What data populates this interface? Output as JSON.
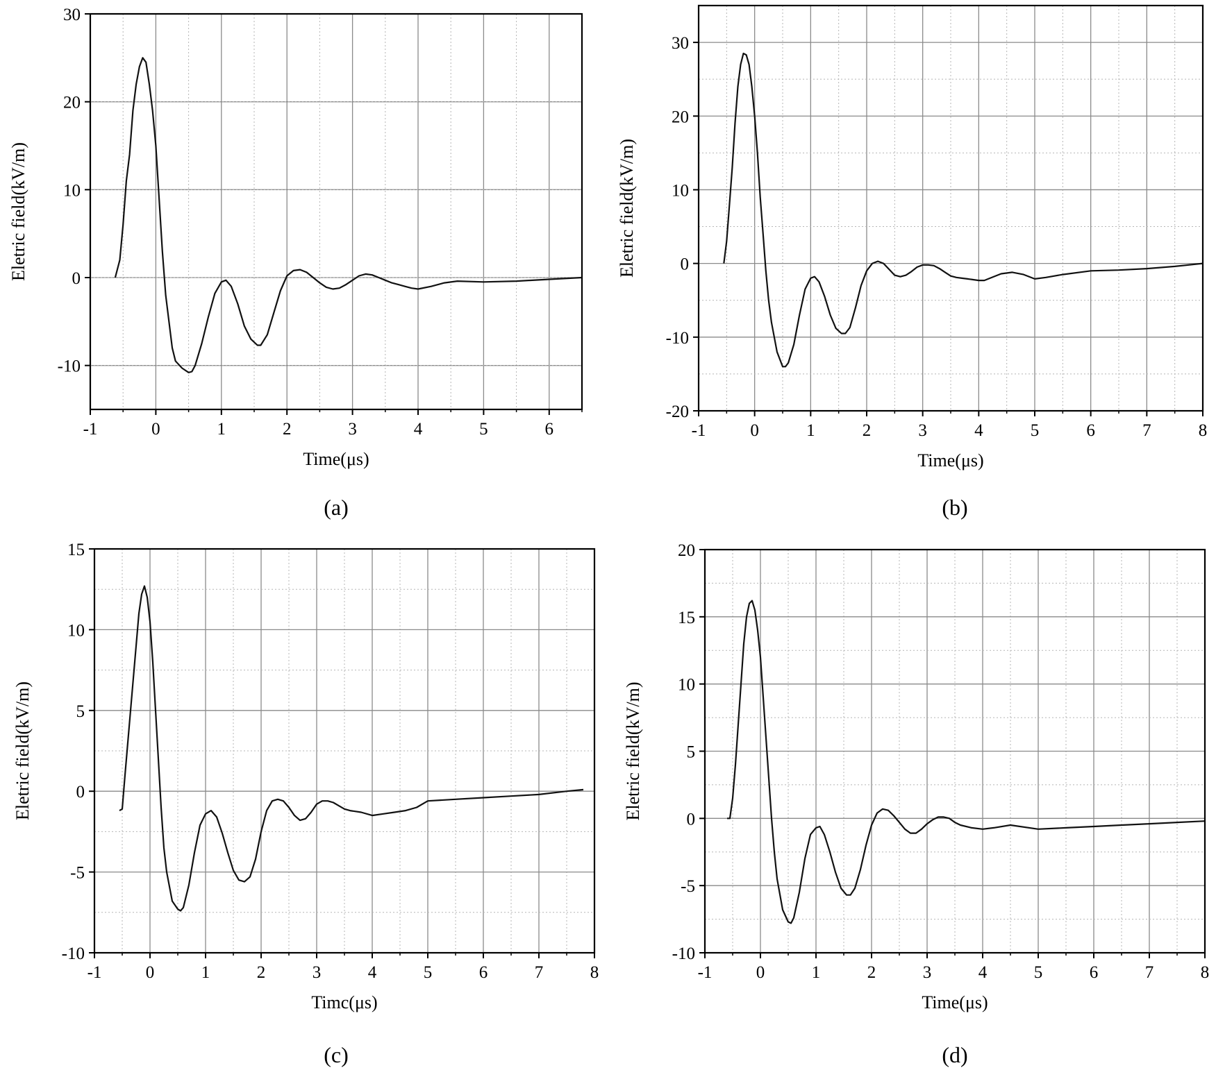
{
  "chart_data": [
    {
      "type": "line",
      "caption": "(a)",
      "xlabel": "Time(μs)",
      "ylabel": "Eletric field(kV/m)",
      "xlim": [
        -1,
        6.5
      ],
      "ylim": [
        -15,
        30
      ],
      "xticks": [
        -1,
        0,
        1,
        2,
        3,
        4,
        5,
        6
      ],
      "yticks": [
        -10,
        0,
        10,
        20,
        30
      ],
      "grid": true,
      "series": [
        {
          "x": [
            -0.62,
            -0.55,
            -0.5,
            -0.45,
            -0.4,
            -0.35,
            -0.3,
            -0.25,
            -0.2,
            -0.15,
            -0.1,
            -0.05,
            0,
            0.05,
            0.1,
            0.15,
            0.2,
            0.25,
            0.3,
            0.4,
            0.5,
            0.55,
            0.6,
            0.7,
            0.8,
            0.9,
            1.0,
            1.07,
            1.15,
            1.25,
            1.35,
            1.45,
            1.55,
            1.6,
            1.7,
            1.8,
            1.9,
            2.0,
            2.1,
            2.2,
            2.3,
            2.4,
            2.5,
            2.6,
            2.7,
            2.8,
            2.9,
            3.0,
            3.1,
            3.2,
            3.3,
            3.4,
            3.5,
            3.6,
            3.7,
            3.8,
            3.9,
            4.0,
            4.2,
            4.4,
            4.6,
            5.0,
            5.5,
            6.0,
            6.5
          ],
          "y": [
            0,
            2,
            6,
            11,
            14,
            19,
            22,
            24,
            25,
            24.5,
            22,
            19,
            15,
            9,
            3,
            -2,
            -5,
            -8,
            -9.5,
            -10.3,
            -10.8,
            -10.7,
            -10,
            -7.5,
            -4.5,
            -1.8,
            -0.5,
            -0.3,
            -1,
            -3,
            -5.5,
            -7,
            -7.7,
            -7.7,
            -6.5,
            -4,
            -1.5,
            0.2,
            0.8,
            0.9,
            0.6,
            0,
            -0.6,
            -1.1,
            -1.3,
            -1.2,
            -0.8,
            -0.3,
            0.2,
            0.4,
            0.3,
            0,
            -0.3,
            -0.6,
            -0.8,
            -1.0,
            -1.2,
            -1.3,
            -1.0,
            -0.6,
            -0.4,
            -0.5,
            -0.4,
            -0.2,
            0
          ]
        }
      ]
    },
    {
      "type": "line",
      "caption": "(b)",
      "xlabel": "Time(μs)",
      "ylabel": "Eletric field(kV/m)",
      "xlim": [
        -1,
        8
      ],
      "ylim": [
        -20,
        35
      ],
      "xticks": [
        -1,
        0,
        1,
        2,
        3,
        4,
        5,
        6,
        7,
        8
      ],
      "yticks": [
        -20,
        -10,
        0,
        10,
        20,
        30
      ],
      "grid": true,
      "series": [
        {
          "x": [
            -0.55,
            -0.5,
            -0.45,
            -0.4,
            -0.35,
            -0.3,
            -0.25,
            -0.2,
            -0.15,
            -0.1,
            -0.05,
            0,
            0.05,
            0.1,
            0.15,
            0.2,
            0.25,
            0.3,
            0.4,
            0.5,
            0.55,
            0.6,
            0.7,
            0.8,
            0.9,
            1.0,
            1.07,
            1.15,
            1.25,
            1.35,
            1.45,
            1.55,
            1.62,
            1.7,
            1.8,
            1.9,
            2.0,
            2.1,
            2.2,
            2.3,
            2.4,
            2.5,
            2.6,
            2.7,
            2.8,
            2.9,
            3.0,
            3.1,
            3.2,
            3.3,
            3.4,
            3.5,
            3.6,
            3.7,
            3.8,
            3.9,
            4.0,
            4.1,
            4.2,
            4.4,
            4.6,
            4.8,
            5.0,
            5.2,
            5.5,
            6.0,
            6.5,
            7.0,
            7.5,
            8.0
          ],
          "y": [
            0,
            3,
            8,
            13,
            19,
            24,
            27,
            28.5,
            28.3,
            27,
            24,
            20,
            15,
            9,
            4,
            -1,
            -5,
            -8,
            -12,
            -14,
            -14,
            -13.5,
            -11,
            -7,
            -3.5,
            -2,
            -1.8,
            -2.5,
            -4.5,
            -7,
            -8.8,
            -9.5,
            -9.5,
            -8.7,
            -6,
            -3,
            -1,
            0,
            0.3,
            0,
            -0.8,
            -1.6,
            -1.8,
            -1.6,
            -1.1,
            -0.5,
            -0.2,
            -0.2,
            -0.3,
            -0.7,
            -1.2,
            -1.7,
            -1.9,
            -2,
            -2.1,
            -2.2,
            -2.3,
            -2.3,
            -2.0,
            -1.4,
            -1.2,
            -1.5,
            -2.1,
            -1.9,
            -1.5,
            -1,
            -0.9,
            -0.7,
            -0.4,
            0
          ]
        }
      ]
    },
    {
      "type": "line",
      "caption": "(c)",
      "xlabel": "Timc(μs)",
      "ylabel": "Eletric field(kV/m)",
      "xlim": [
        -1,
        8
      ],
      "ylim": [
        -10,
        15
      ],
      "xticks": [
        -1,
        0,
        1,
        2,
        3,
        4,
        5,
        6,
        7,
        8
      ],
      "yticks": [
        -10,
        -5,
        0,
        5,
        10,
        15
      ],
      "grid": true,
      "series": [
        {
          "x": [
            -0.55,
            -0.5,
            -0.45,
            -0.4,
            -0.35,
            -0.3,
            -0.25,
            -0.2,
            -0.15,
            -0.1,
            -0.05,
            0,
            0.05,
            0.1,
            0.15,
            0.2,
            0.25,
            0.3,
            0.4,
            0.5,
            0.55,
            0.6,
            0.7,
            0.8,
            0.9,
            1.0,
            1.1,
            1.2,
            1.3,
            1.4,
            1.5,
            1.6,
            1.7,
            1.8,
            1.9,
            2.0,
            2.1,
            2.2,
            2.3,
            2.4,
            2.5,
            2.6,
            2.7,
            2.8,
            2.9,
            3.0,
            3.1,
            3.2,
            3.3,
            3.4,
            3.5,
            3.6,
            3.8,
            4.0,
            4.2,
            4.4,
            4.6,
            4.8,
            5.0,
            5.5,
            6.0,
            6.5,
            7.0,
            7.5,
            7.8
          ],
          "y": [
            -1.2,
            -1.1,
            1,
            3,
            5,
            7,
            9,
            11,
            12.2,
            12.7,
            12,
            10.5,
            8,
            5,
            2,
            -1,
            -3.5,
            -5,
            -6.8,
            -7.3,
            -7.4,
            -7.2,
            -5.8,
            -3.8,
            -2.1,
            -1.4,
            -1.2,
            -1.6,
            -2.6,
            -3.8,
            -4.9,
            -5.5,
            -5.6,
            -5.3,
            -4.2,
            -2.5,
            -1.2,
            -0.6,
            -0.5,
            -0.6,
            -1.0,
            -1.5,
            -1.8,
            -1.7,
            -1.3,
            -0.8,
            -0.6,
            -0.6,
            -0.7,
            -0.9,
            -1.1,
            -1.2,
            -1.3,
            -1.5,
            -1.4,
            -1.3,
            -1.2,
            -1.0,
            -0.6,
            -0.5,
            -0.4,
            -0.3,
            -0.2,
            0,
            0.1
          ]
        }
      ]
    },
    {
      "type": "line",
      "caption": "(d)",
      "xlabel": "Time(μs)",
      "ylabel": "Eletric field(kV/m)",
      "xlim": [
        -1,
        8
      ],
      "ylim": [
        -10,
        20
      ],
      "xticks": [
        -1,
        0,
        1,
        2,
        3,
        4,
        5,
        6,
        7,
        8
      ],
      "yticks": [
        -10,
        -5,
        0,
        5,
        10,
        15,
        20
      ],
      "grid": true,
      "series": [
        {
          "x": [
            -0.6,
            -0.55,
            -0.5,
            -0.45,
            -0.4,
            -0.35,
            -0.3,
            -0.25,
            -0.2,
            -0.15,
            -0.1,
            -0.05,
            0,
            0.05,
            0.1,
            0.15,
            0.2,
            0.25,
            0.3,
            0.4,
            0.5,
            0.55,
            0.6,
            0.7,
            0.8,
            0.9,
            1.0,
            1.07,
            1.15,
            1.25,
            1.35,
            1.45,
            1.55,
            1.62,
            1.7,
            1.8,
            1.9,
            2.0,
            2.1,
            2.2,
            2.3,
            2.4,
            2.5,
            2.6,
            2.7,
            2.8,
            2.9,
            3.0,
            3.1,
            3.2,
            3.3,
            3.4,
            3.5,
            3.6,
            3.8,
            4.0,
            4.2,
            4.5,
            5.0,
            5.5,
            6.0,
            6.5,
            7.0,
            7.5,
            8.0
          ],
          "y": [
            0,
            0,
            1.5,
            4,
            7,
            10,
            13,
            15,
            16,
            16.2,
            15.5,
            14,
            12,
            9,
            6,
            3,
            0,
            -2.5,
            -4.5,
            -6.8,
            -7.7,
            -7.8,
            -7.4,
            -5.5,
            -3,
            -1.2,
            -0.7,
            -0.6,
            -1.2,
            -2.5,
            -4,
            -5.2,
            -5.7,
            -5.7,
            -5.2,
            -3.8,
            -2,
            -0.5,
            0.4,
            0.7,
            0.6,
            0.2,
            -0.3,
            -0.8,
            -1.1,
            -1.1,
            -0.8,
            -0.4,
            -0.1,
            0.1,
            0.1,
            0,
            -0.3,
            -0.5,
            -0.7,
            -0.8,
            -0.7,
            -0.5,
            -0.8,
            -0.7,
            -0.6,
            -0.5,
            -0.4,
            -0.3,
            -0.2
          ]
        }
      ]
    }
  ]
}
